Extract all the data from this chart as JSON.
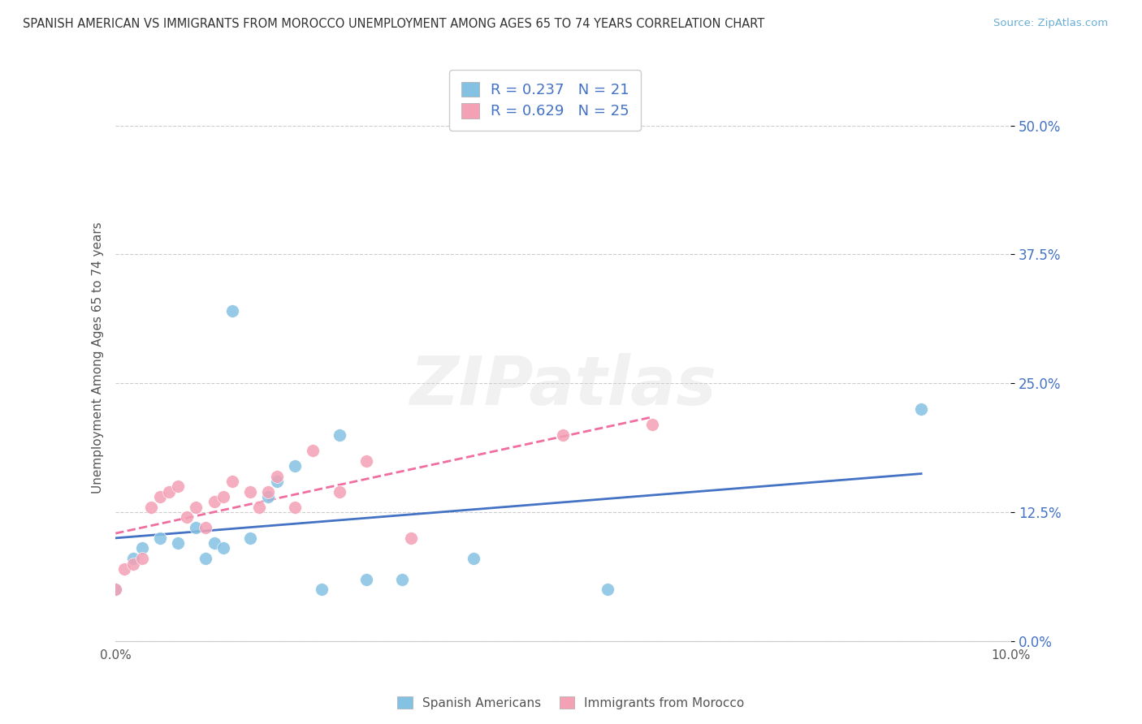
{
  "title": "SPANISH AMERICAN VS IMMIGRANTS FROM MOROCCO UNEMPLOYMENT AMONG AGES 65 TO 74 YEARS CORRELATION CHART",
  "source": "Source: ZipAtlas.com",
  "ylabel": "Unemployment Among Ages 65 to 74 years",
  "ytick_labels": [
    "0.0%",
    "12.5%",
    "25.0%",
    "37.5%",
    "50.0%"
  ],
  "ytick_values": [
    0.0,
    0.125,
    0.25,
    0.375,
    0.5
  ],
  "xmin": 0.0,
  "xmax": 0.1,
  "ymin": 0.0,
  "ymax": 0.55,
  "legend_label1": "Spanish Americans",
  "legend_label2": "Immigrants from Morocco",
  "R1": 0.237,
  "N1": 21,
  "R2": 0.629,
  "N2": 25,
  "color1": "#85c1e2",
  "color2": "#f4a0b5",
  "trendline1_color": "#4472c4",
  "trendline2_color": "#f06fa0",
  "spanish_x": [
    0.0,
    0.002,
    0.003,
    0.005,
    0.007,
    0.009,
    0.01,
    0.011,
    0.012,
    0.013,
    0.015,
    0.017,
    0.018,
    0.02,
    0.023,
    0.025,
    0.028,
    0.032,
    0.04,
    0.055,
    0.09
  ],
  "spanish_y": [
    0.05,
    0.08,
    0.09,
    0.1,
    0.095,
    0.11,
    0.08,
    0.095,
    0.09,
    0.32,
    0.1,
    0.14,
    0.155,
    0.17,
    0.05,
    0.2,
    0.06,
    0.06,
    0.08,
    0.05,
    0.225
  ],
  "morocco_x": [
    0.0,
    0.001,
    0.002,
    0.003,
    0.004,
    0.005,
    0.006,
    0.007,
    0.008,
    0.009,
    0.01,
    0.011,
    0.012,
    0.013,
    0.015,
    0.016,
    0.017,
    0.018,
    0.02,
    0.022,
    0.025,
    0.028,
    0.033,
    0.05,
    0.06
  ],
  "morocco_y": [
    0.05,
    0.07,
    0.075,
    0.08,
    0.13,
    0.14,
    0.145,
    0.15,
    0.12,
    0.13,
    0.11,
    0.135,
    0.14,
    0.155,
    0.145,
    0.13,
    0.145,
    0.16,
    0.13,
    0.185,
    0.145,
    0.175,
    0.1,
    0.2,
    0.21
  ]
}
